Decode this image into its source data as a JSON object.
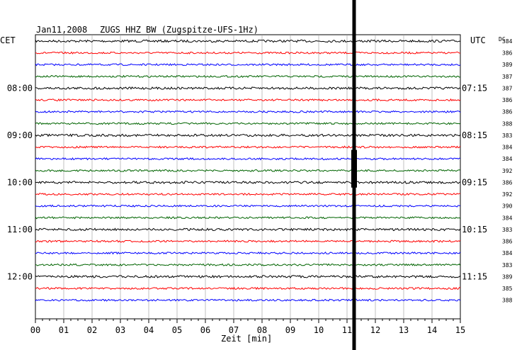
{
  "header": {
    "date": "Jan11,2008",
    "station": "ZUGS HHZ BW (Zugspitze-UFS-1Hz)",
    "left_timezone": "CET",
    "right_timezone": "UTC",
    "dc_label": "DC"
  },
  "chart_data": {
    "type": "line",
    "title": "ZUGS HHZ BW (Zugspitze-UFS-1Hz)",
    "xlabel": "Zeit [min]",
    "x_ticks": [
      "00",
      "01",
      "02",
      "03",
      "04",
      "05",
      "06",
      "07",
      "08",
      "09",
      "10",
      "11",
      "12",
      "13",
      "14",
      "15"
    ],
    "xlim": [
      0,
      15
    ],
    "grid": true,
    "left_time_labels": [
      {
        "row": 4,
        "label": "08:00"
      },
      {
        "row": 8,
        "label": "09:00"
      },
      {
        "row": 12,
        "label": "10:00"
      },
      {
        "row": 16,
        "label": "11:00"
      },
      {
        "row": 20,
        "label": "12:00"
      }
    ],
    "right_time_labels": [
      {
        "row": 4,
        "label": "07:15"
      },
      {
        "row": 8,
        "label": "08:15"
      },
      {
        "row": 12,
        "label": "09:15"
      },
      {
        "row": 16,
        "label": "10:15"
      },
      {
        "row": 20,
        "label": "11:15"
      }
    ],
    "dc_values": [
      "384",
      "386",
      "389",
      "387",
      "387",
      "386",
      "386",
      "388",
      "383",
      "384",
      "384",
      "392",
      "386",
      "392",
      "390",
      "384",
      "383",
      "386",
      "384",
      "383",
      "389",
      "385",
      "388"
    ],
    "trace_colors": [
      "#000000",
      "#ff0000",
      "#0000ff",
      "#006400"
    ],
    "event": {
      "minute": 11.25,
      "color": "#000000"
    }
  }
}
